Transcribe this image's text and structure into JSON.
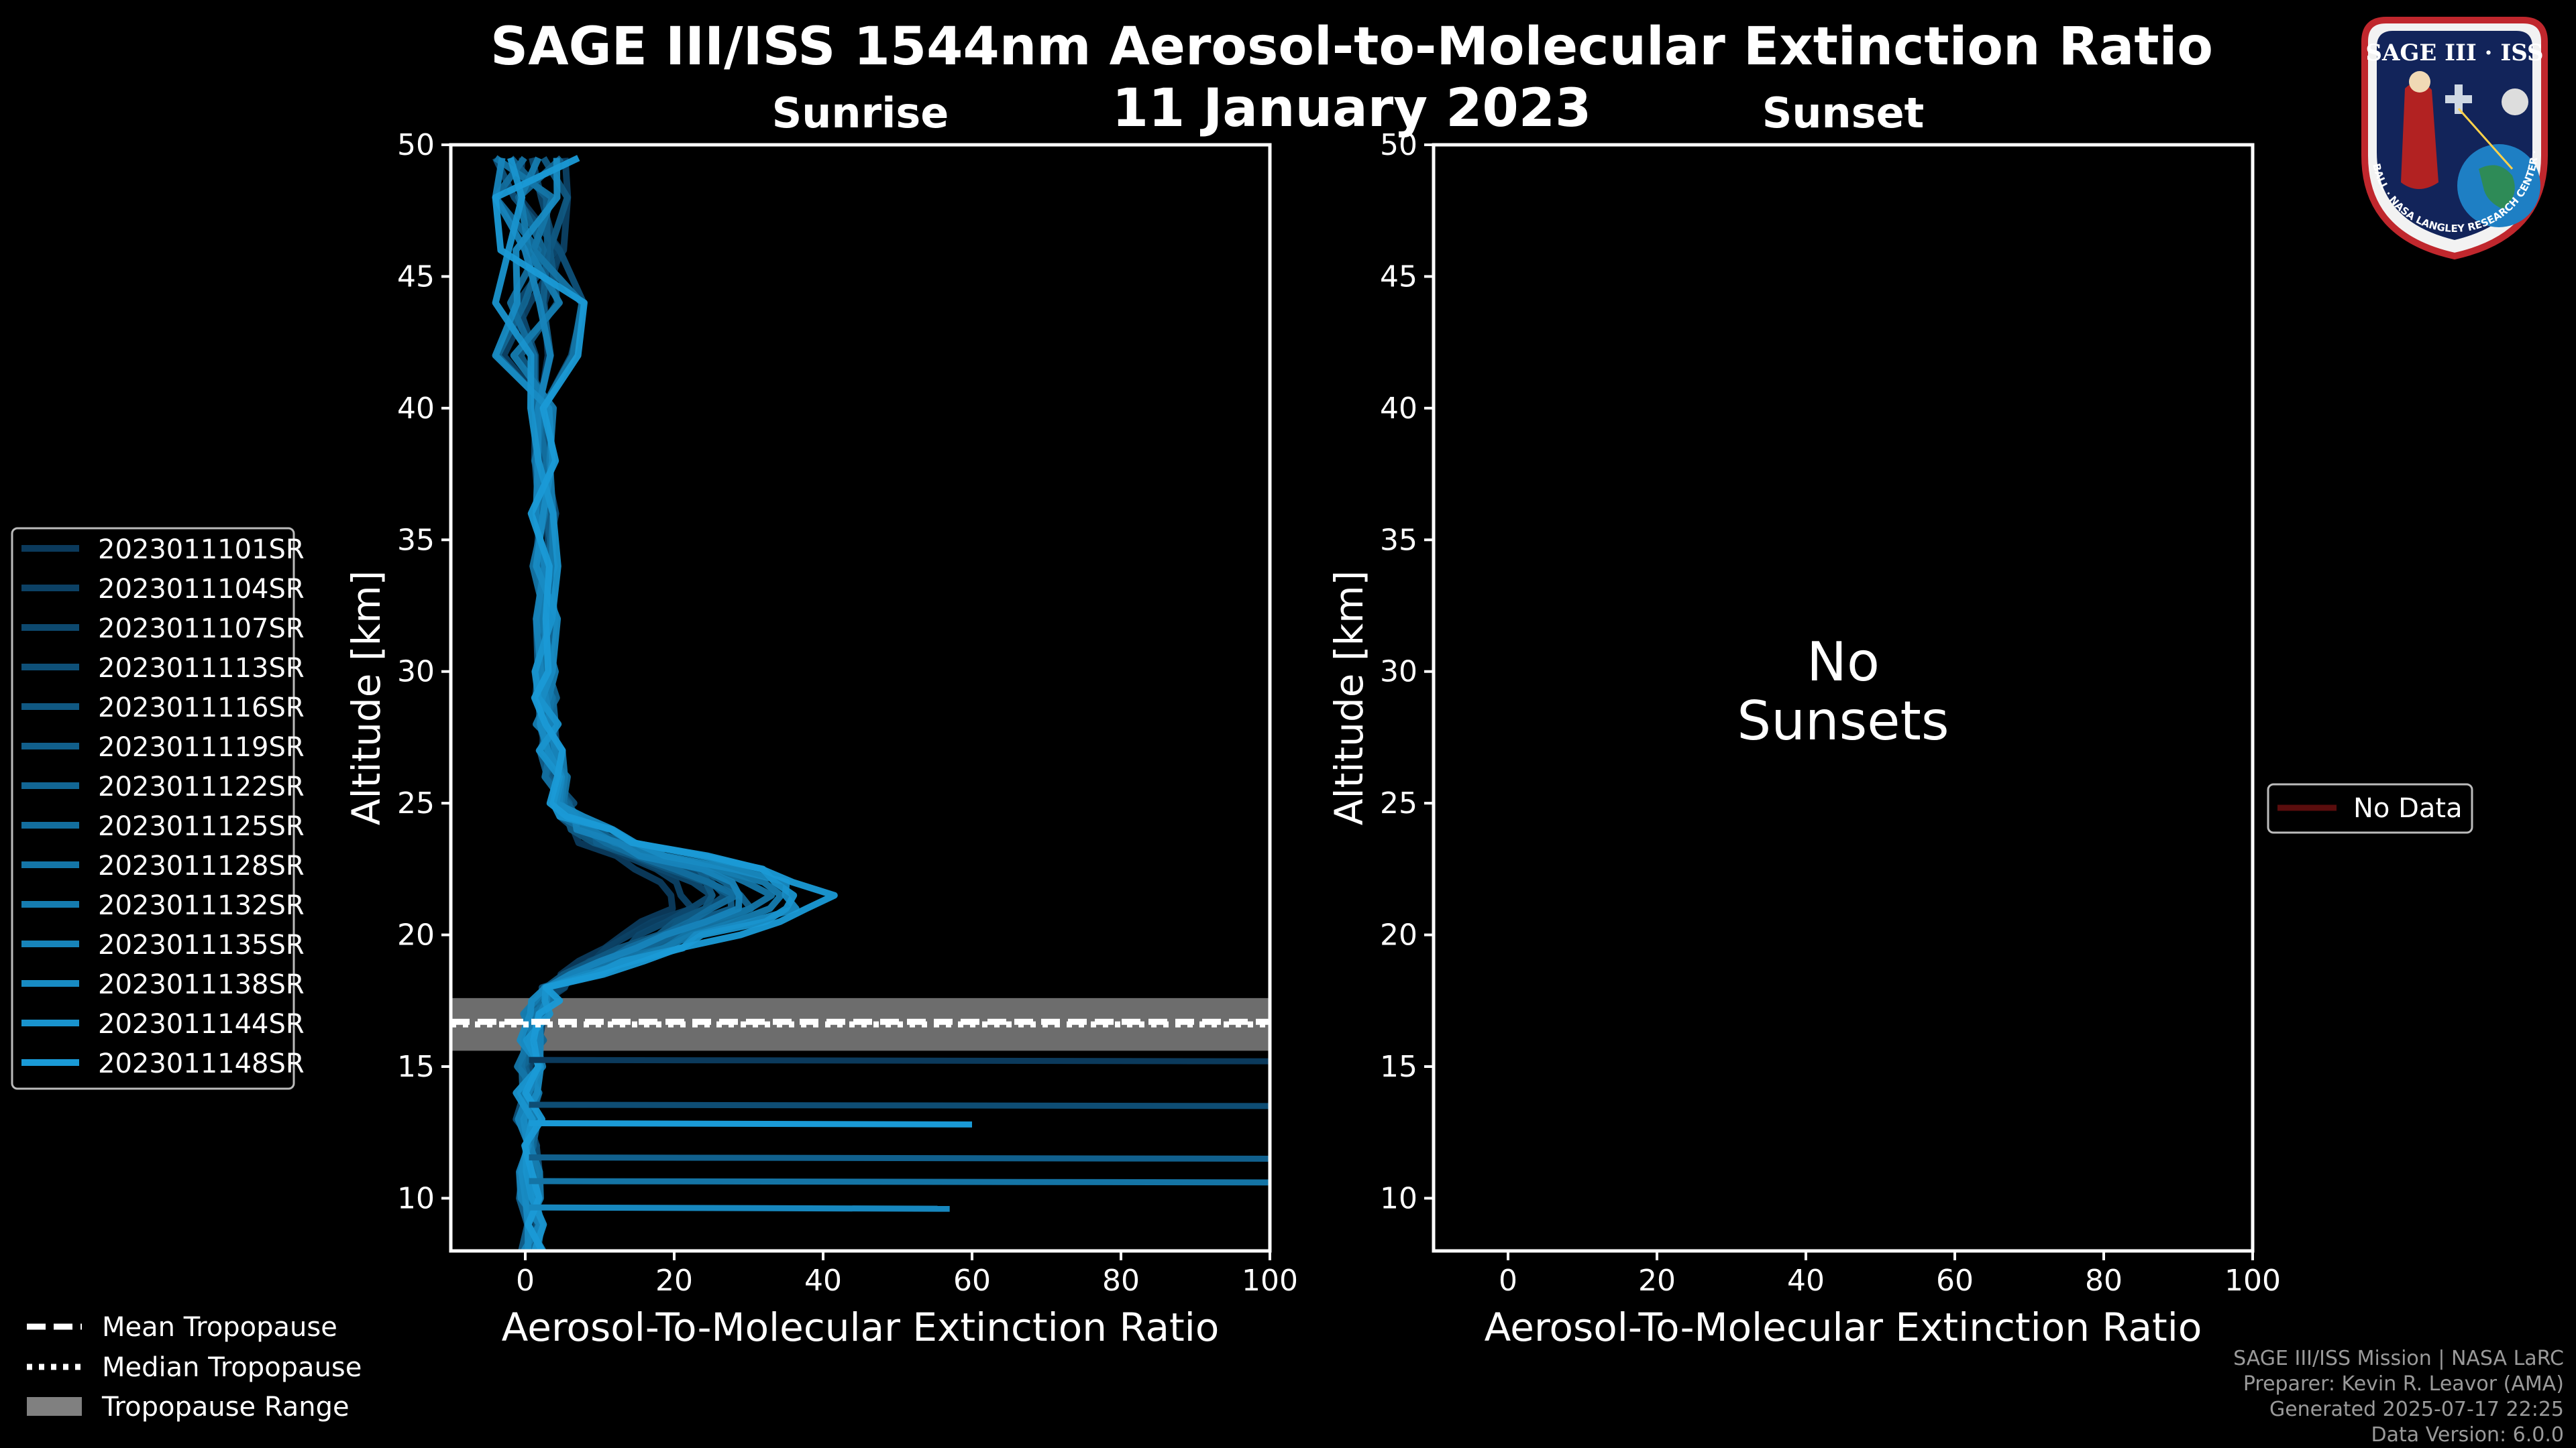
{
  "title_line1": "SAGE III/ISS 1544nm Aerosol-to-Molecular Extinction Ratio",
  "title_line2": "11 January 2023",
  "colors": {
    "background": "#000000",
    "profile_dark": "#0b3a5c",
    "profile_light": "#1a9ad6",
    "tropo_range": "#808080",
    "no_data": "#5a0d0d"
  },
  "chart_data": [
    {
      "type": "line",
      "panel": "sunrise",
      "title": "Sunrise",
      "xlabel": "Aerosol-To-Molecular Extinction Ratio",
      "ylabel": "Altitude [km]",
      "xlim": [
        -10,
        100
      ],
      "ylim": [
        8,
        50
      ],
      "xticks": [
        0,
        20,
        40,
        60,
        80,
        100
      ],
      "yticks": [
        10,
        15,
        20,
        25,
        30,
        35,
        40,
        45,
        50
      ],
      "tropopause": {
        "mean": 16.7,
        "median": 16.6,
        "range": [
          15.6,
          17.6
        ]
      },
      "base_profile": {
        "altitude": [
          8.0,
          9.0,
          10.0,
          11.0,
          12.0,
          13.0,
          14.0,
          15.0,
          16.0,
          17.0,
          17.5,
          18.0,
          18.5,
          19.0,
          19.5,
          20.0,
          20.5,
          21.0,
          21.5,
          22.0,
          22.5,
          23.0,
          23.5,
          24.0,
          24.5,
          25.0,
          26.0,
          27.0,
          28.0,
          29.0,
          30.0,
          32.0,
          34.0,
          36.0,
          38.0,
          40.0,
          42.0,
          44.0,
          46.0,
          48.0,
          49.5
        ],
        "ratio": [
          1,
          0.5,
          0.3,
          0.5,
          0.5,
          0.5,
          0.6,
          0.7,
          0.9,
          1.5,
          2.5,
          4,
          7,
          11,
          15,
          19,
          23,
          27,
          28,
          26,
          22,
          16,
          11,
          8,
          6,
          5,
          4,
          3.5,
          3,
          2.8,
          2.6,
          2.5,
          2.5,
          2.4,
          2.3,
          2.2,
          2.0,
          1.8,
          1.5,
          1.0,
          0.5
        ]
      },
      "series": [
        {
          "name": "2023011101SR",
          "peak": 20,
          "noise": 1.0
        },
        {
          "name": "2023011104SR",
          "peak": 22,
          "noise": 1.3
        },
        {
          "name": "2023011107SR",
          "peak": 24,
          "noise": 1.1
        },
        {
          "name": "2023011113SR",
          "peak": 26,
          "noise": 1.6
        },
        {
          "name": "2023011116SR",
          "peak": 25,
          "noise": 1.2
        },
        {
          "name": "2023011119SR",
          "peak": 28,
          "noise": 1.4
        },
        {
          "name": "2023011122SR",
          "peak": 30,
          "noise": 1.5
        },
        {
          "name": "2023011125SR",
          "peak": 27,
          "noise": 1.3
        },
        {
          "name": "2023011128SR",
          "peak": 32,
          "noise": 1.7
        },
        {
          "name": "2023011132SR",
          "peak": 34,
          "noise": 1.6
        },
        {
          "name": "2023011135SR",
          "peak": 29,
          "noise": 1.4
        },
        {
          "name": "2023011138SR",
          "peak": 36,
          "noise": 1.8
        },
        {
          "name": "2023011144SR",
          "peak": 38,
          "noise": 1.9
        },
        {
          "name": "2023011148SR",
          "peak": 40,
          "noise": 2.0
        }
      ],
      "low_altitude_spikes": [
        {
          "altitude": 15.2,
          "ratio": 100
        },
        {
          "altitude": 13.5,
          "ratio": 100
        },
        {
          "altitude": 11.5,
          "ratio": 100
        },
        {
          "altitude": 10.6,
          "ratio": 100
        },
        {
          "altitude": 9.6,
          "ratio": 57
        },
        {
          "altitude": 12.8,
          "ratio": 60
        }
      ],
      "legend_position": "left"
    },
    {
      "type": "line",
      "panel": "sunset",
      "title": "Sunset",
      "xlabel": "Aerosol-To-Molecular Extinction Ratio",
      "ylabel": "Altitude [km]",
      "xlim": [
        -10,
        100
      ],
      "ylim": [
        8,
        50
      ],
      "xticks": [
        0,
        20,
        40,
        60,
        80,
        100
      ],
      "yticks": [
        10,
        15,
        20,
        25,
        30,
        35,
        40,
        45,
        50
      ],
      "series": [],
      "no_data_message": [
        "No",
        "Sunsets"
      ],
      "legend": [
        {
          "name": "No Data"
        }
      ],
      "legend_position": "right"
    }
  ],
  "tropopause_legend": [
    "Mean Tropopause",
    "Median Tropopause",
    "Tropopause Range"
  ],
  "footer": [
    "SAGE III/ISS Mission | NASA LaRC",
    "Preparer: Kevin R. Leavor (AMA)",
    "Generated 2025-07-17 22:25",
    "Data Version: 6.0.0"
  ],
  "logo": {
    "title": "SAGE III · ISS",
    "ring_text": "BALL · NASA LANGLEY RESEARCH CENTER · TAS-I · ESA"
  }
}
